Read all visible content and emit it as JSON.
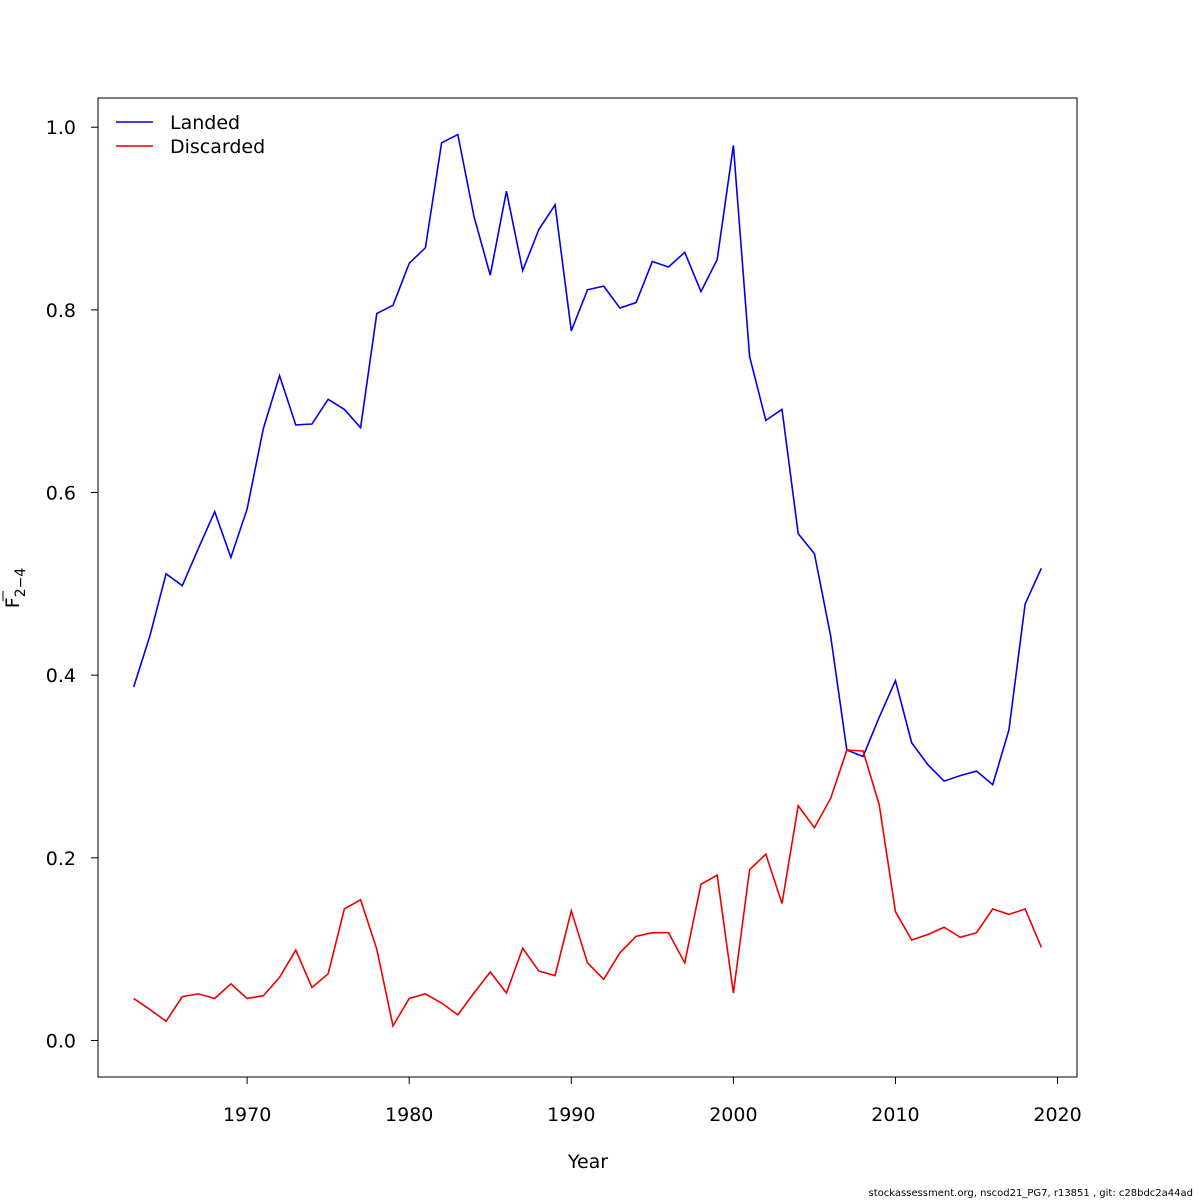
{
  "chart_data": {
    "type": "line",
    "xlabel": "Year",
    "ylabel": "F",
    "ylabel_subscript": "2−4",
    "xlim": [
      1960.8,
      2021.2
    ],
    "ylim": [
      -0.04,
      1.032
    ],
    "x_ticks": [
      1970,
      1980,
      1990,
      2000,
      2010,
      2020
    ],
    "y_ticks": [
      0.0,
      0.2,
      0.4,
      0.6,
      0.8,
      1.0
    ],
    "x_tick_labels": [
      "1970",
      "1980",
      "1990",
      "2000",
      "2010",
      "2020"
    ],
    "y_tick_labels": [
      "0.0",
      "0.2",
      "0.4",
      "0.6",
      "0.8",
      "1.0"
    ],
    "legend_position": "top-left",
    "grid": false,
    "x": [
      1963,
      1964,
      1965,
      1966,
      1967,
      1968,
      1969,
      1970,
      1971,
      1972,
      1973,
      1974,
      1975,
      1976,
      1977,
      1978,
      1979,
      1980,
      1981,
      1982,
      1983,
      1984,
      1985,
      1986,
      1987,
      1988,
      1989,
      1990,
      1991,
      1992,
      1993,
      1994,
      1995,
      1996,
      1997,
      1998,
      1999,
      2000,
      2001,
      2002,
      2003,
      2004,
      2005,
      2006,
      2007,
      2008,
      2009,
      2010,
      2011,
      2012,
      2013,
      2014,
      2015,
      2016,
      2017,
      2018,
      2019
    ],
    "series": [
      {
        "name": "Landed",
        "color": "#0000ee",
        "values": [
          0.387,
          0.443,
          0.511,
          0.498,
          0.539,
          0.579,
          0.529,
          0.582,
          0.67,
          0.728,
          0.674,
          0.675,
          0.702,
          0.691,
          0.671,
          0.796,
          0.805,
          0.851,
          0.868,
          0.983,
          0.992,
          0.902,
          0.838,
          0.93,
          0.843,
          0.888,
          0.915,
          0.777,
          0.822,
          0.826,
          0.802,
          0.808,
          0.853,
          0.847,
          0.863,
          0.82,
          0.855,
          0.98,
          0.749,
          0.679,
          0.691,
          0.555,
          0.533,
          0.443,
          0.318,
          0.311,
          0.354,
          0.394,
          0.326,
          0.302,
          0.284,
          0.29,
          0.295,
          0.28,
          0.34,
          0.478,
          0.517
        ]
      },
      {
        "name": "Discarded",
        "color": "#ee0000",
        "values": [
          0.046,
          0.034,
          0.021,
          0.048,
          0.051,
          0.046,
          0.062,
          0.046,
          0.049,
          0.069,
          0.099,
          0.058,
          0.073,
          0.144,
          0.154,
          0.1,
          0.016,
          0.046,
          0.051,
          0.041,
          0.028,
          0.052,
          0.075,
          0.052,
          0.101,
          0.076,
          0.071,
          0.142,
          0.085,
          0.067,
          0.096,
          0.114,
          0.118,
          0.118,
          0.085,
          0.171,
          0.181,
          0.052,
          0.187,
          0.204,
          0.15,
          0.257,
          0.233,
          0.265,
          0.318,
          0.317,
          0.258,
          0.141,
          0.11,
          0.116,
          0.124,
          0.113,
          0.118,
          0.144,
          0.138,
          0.144,
          0.102
        ]
      }
    ]
  },
  "footer": {
    "credit": "stockassessment.org, nscod21_PG7, r13851 , git: c28bdc2a44ad"
  }
}
